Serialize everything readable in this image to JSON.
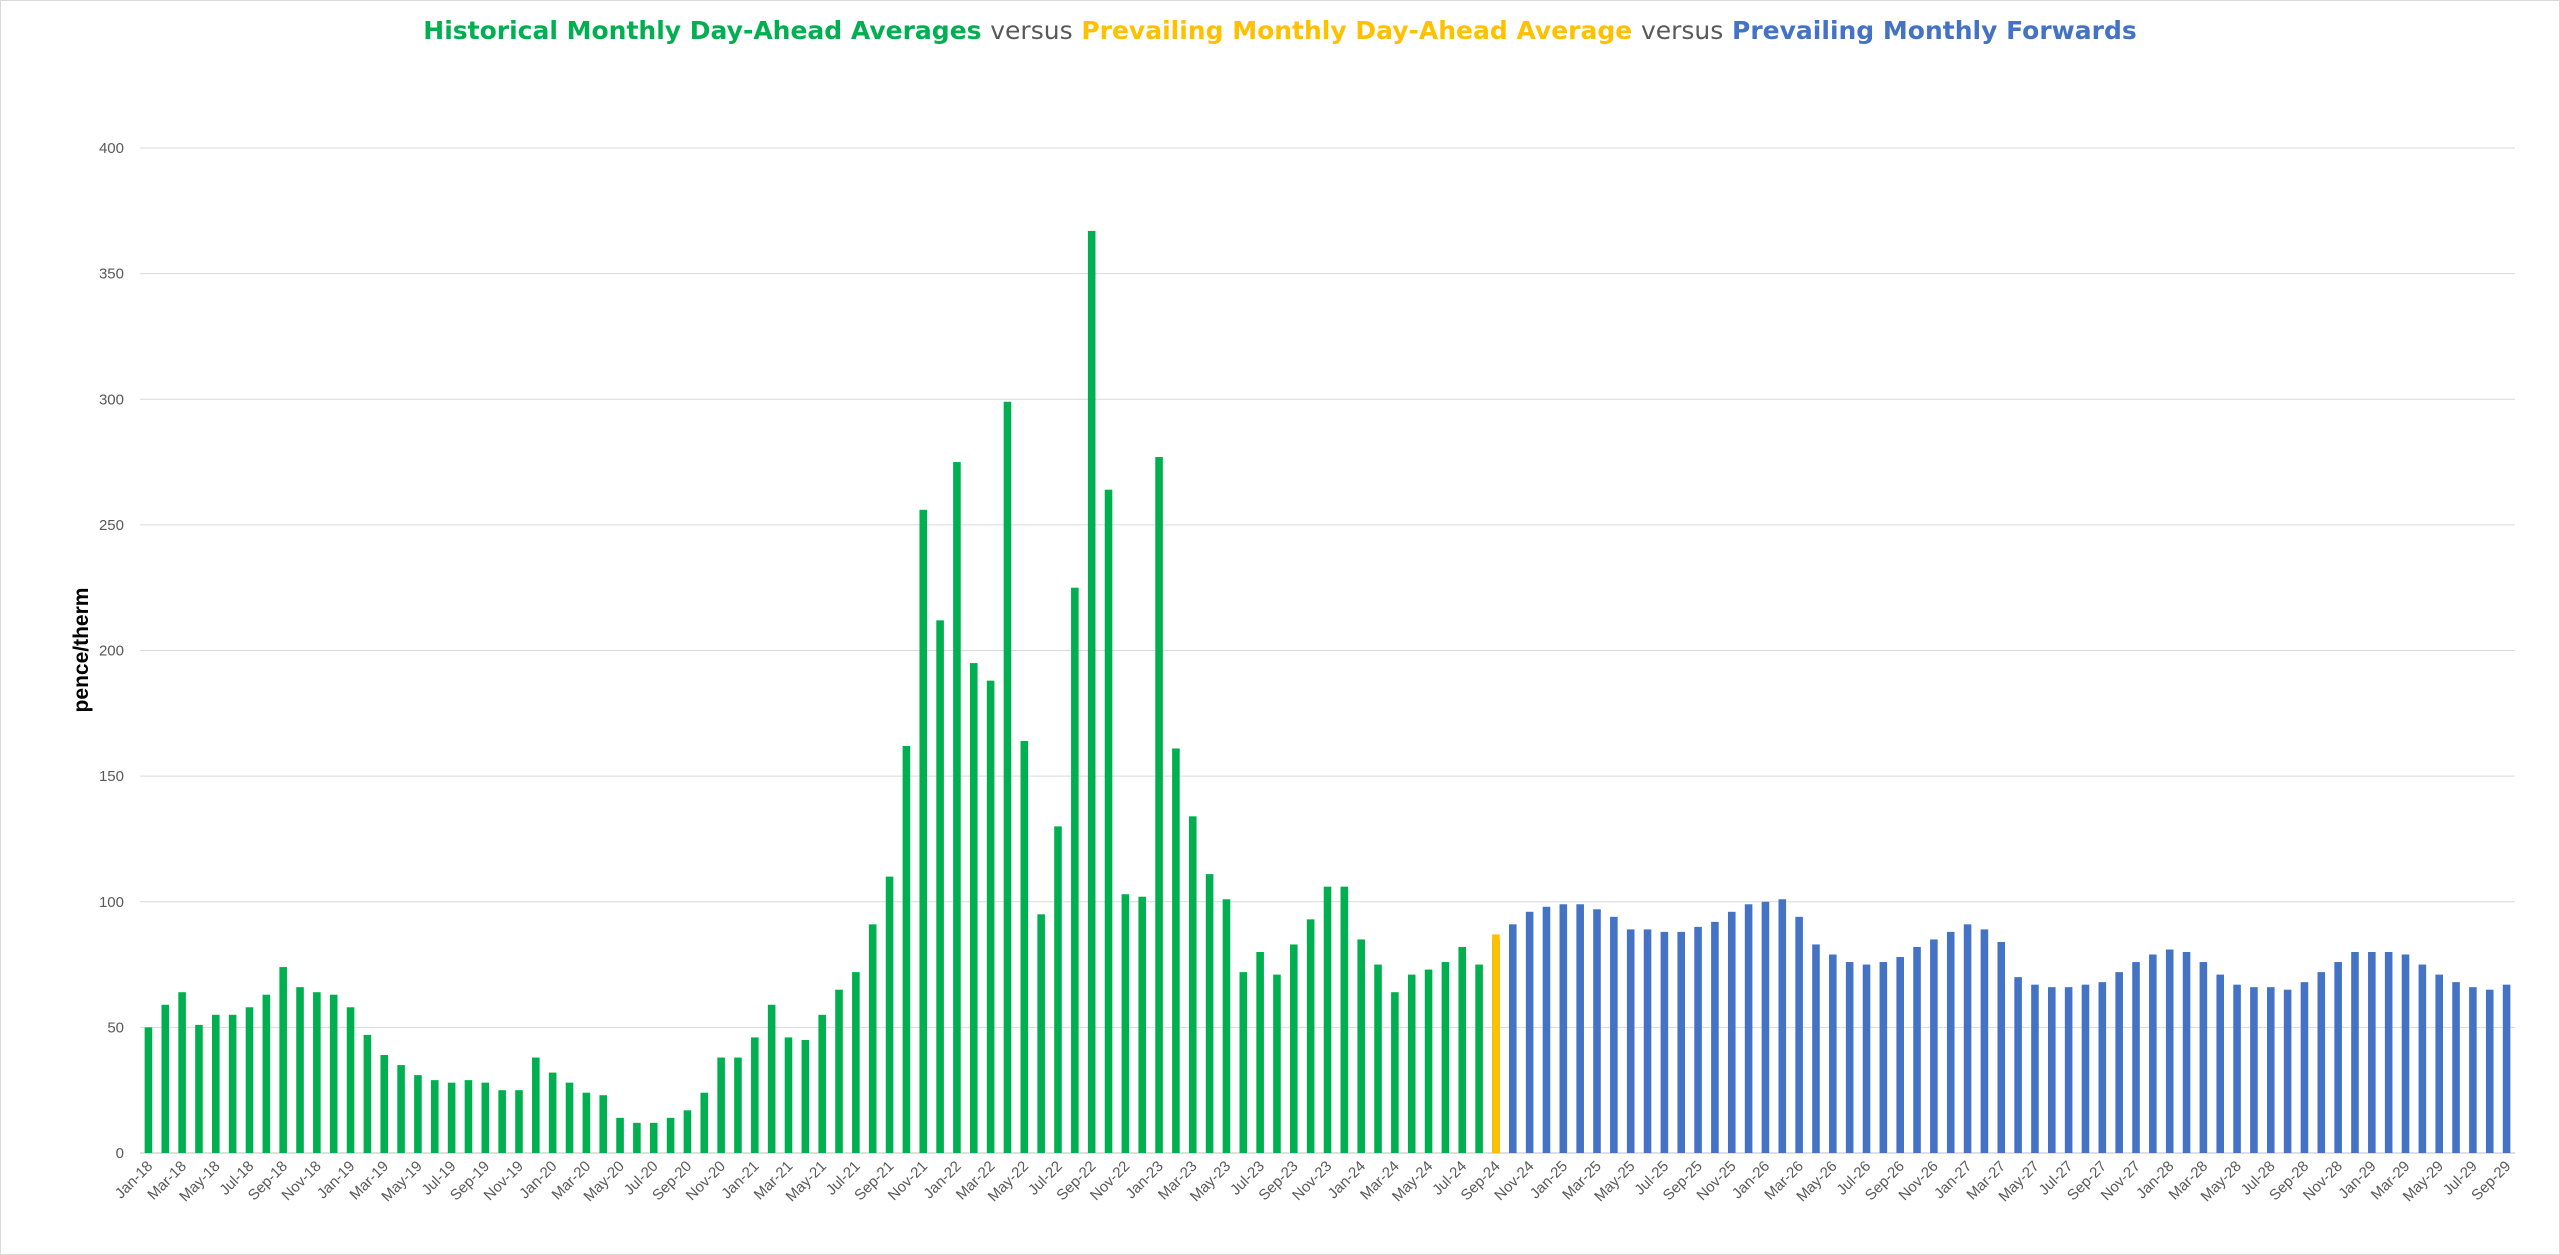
{
  "chart_data": {
    "type": "bar",
    "title": {
      "part1": "Historical Monthly Day-Ahead Averages",
      "sep1": "versus",
      "part2": "Prevailing Monthly Day-Ahead Average",
      "sep2": "versus",
      "part3": "Prevailing Monthly Forwards"
    },
    "ylabel": "pence/therm",
    "xlabel": "",
    "ylim": [
      0,
      400
    ],
    "yticks": [
      0,
      50,
      100,
      150,
      200,
      250,
      300,
      350,
      400
    ],
    "grid": true,
    "colors": {
      "historical": "#00b050",
      "prevailing": "#ffc000",
      "forwards": "#4472c4",
      "title_separator": "#595959"
    },
    "tick_labels": [
      "Jan-18",
      "Mar-18",
      "May-18",
      "Jul-18",
      "Sep-18",
      "Nov-18",
      "Jan-19",
      "Mar-19",
      "May-19",
      "Jul-19",
      "Sep-19",
      "Nov-19",
      "Jan-20",
      "Mar-20",
      "May-20",
      "Jul-20",
      "Sep-20",
      "Nov-20",
      "Jan-21",
      "Mar-21",
      "May-21",
      "Jul-21",
      "Sep-21",
      "Nov-21",
      "Jan-22",
      "Mar-22",
      "May-22",
      "Jul-22",
      "Sep-22",
      "Nov-22",
      "Jan-23",
      "Mar-23",
      "May-23",
      "Jul-23",
      "Sep-23",
      "Nov-23",
      "Jan-24",
      "Mar-24",
      "May-24",
      "Jul-24",
      "Sep-24",
      "Nov-24",
      "Jan-25",
      "Mar-25",
      "May-25",
      "Jul-25",
      "Sep-25",
      "Nov-25",
      "Jan-26",
      "Mar-26",
      "May-26",
      "Jul-26",
      "Sep-26",
      "Nov-26",
      "Jan-27",
      "Mar-27",
      "May-27",
      "Jul-27",
      "Sep-27",
      "Nov-27",
      "Jan-28",
      "Mar-28",
      "May-28",
      "Jul-28",
      "Sep-28",
      "Nov-28",
      "Jan-29",
      "Mar-29",
      "May-29",
      "Jul-29",
      "Sep-29"
    ],
    "series": [
      {
        "start": "Jan-18",
        "values": [
          50,
          59,
          64,
          51,
          55,
          55,
          58,
          63,
          74,
          66,
          64,
          63,
          58,
          47,
          39,
          35,
          31,
          29,
          28,
          29,
          28,
          25,
          25,
          38,
          32,
          28,
          24,
          23,
          14,
          12,
          12,
          14,
          17,
          24,
          38,
          38,
          46,
          59,
          46,
          45,
          55,
          65,
          72,
          91,
          110,
          162,
          256,
          212,
          275,
          195,
          188,
          299,
          164,
          95,
          130,
          225,
          367,
          264,
          103,
          102,
          277,
          161,
          134,
          111,
          101,
          72,
          80,
          71,
          83,
          93,
          106,
          106,
          85,
          75,
          64,
          71,
          73,
          76,
          82,
          75,
          85
        ]
      },
      {
        "start": "Sep-24",
        "values": [
          87
        ]
      },
      {
        "start": "Oct-24",
        "values": [
          91,
          96,
          98,
          99,
          99,
          97,
          94,
          89,
          89,
          88,
          88,
          90,
          92,
          96,
          99,
          100,
          101,
          94,
          83,
          79,
          76,
          75,
          76,
          78,
          82,
          85,
          88,
          91,
          89,
          84,
          70,
          67,
          66,
          66,
          67,
          68,
          72,
          76,
          79,
          81,
          80,
          76,
          71,
          67,
          66,
          66,
          65,
          68,
          72,
          76,
          80,
          80,
          80,
          79,
          75,
          71,
          68,
          66,
          65,
          67
        ]
      }
    ]
  }
}
